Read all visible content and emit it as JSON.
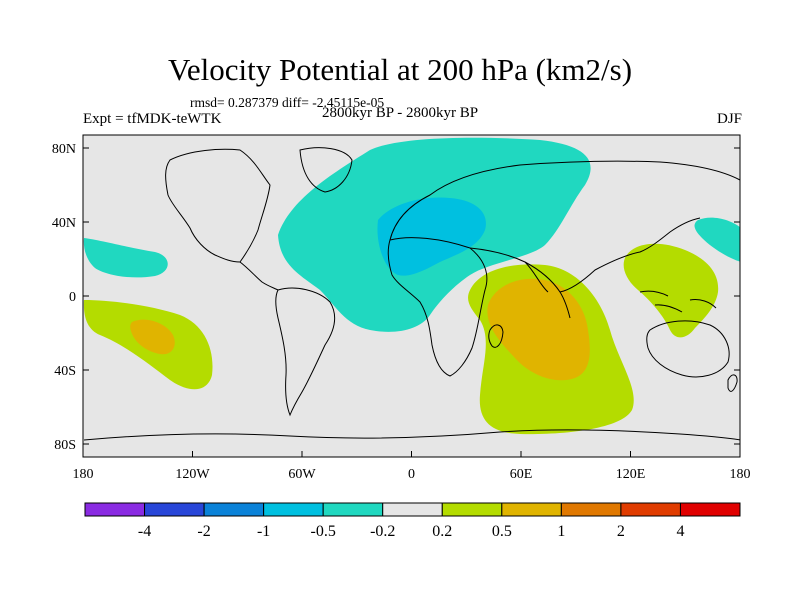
{
  "title": "Velocity Potential at 200 hPa (km2/s)",
  "stats": "rmsd= 0.287379 diff= -2.45115e-05",
  "experiment": "Expt = tfMDK-teWTK",
  "period": "2800kyr BP - 2800kyr BP",
  "season": "DJF",
  "map": {
    "lat_ticks": [
      "80N",
      "40N",
      "0",
      "40S",
      "80S"
    ],
    "lon_ticks": [
      "180",
      "120W",
      "60W",
      "0",
      "60E",
      "120E",
      "180"
    ]
  },
  "colorbar": {
    "colors": [
      "#8a2be2",
      "#2846d8",
      "#0a82d8",
      "#00c0e0",
      "#20d8c0",
      "#e6e6e6",
      "#b4dc00",
      "#e0b400",
      "#e07800",
      "#e03c00",
      "#e00000"
    ],
    "labels": [
      "-4",
      "-2",
      "-1",
      "-0.5",
      "-0.2",
      "0.2",
      "0.5",
      "1",
      "2",
      "4"
    ]
  },
  "fill_colors": {
    "background": "#e6e6e6",
    "neg_02": "#20d8c0",
    "neg_05": "#00c0e0",
    "pos_02": "#b4dc00",
    "pos_05": "#e0b400"
  }
}
